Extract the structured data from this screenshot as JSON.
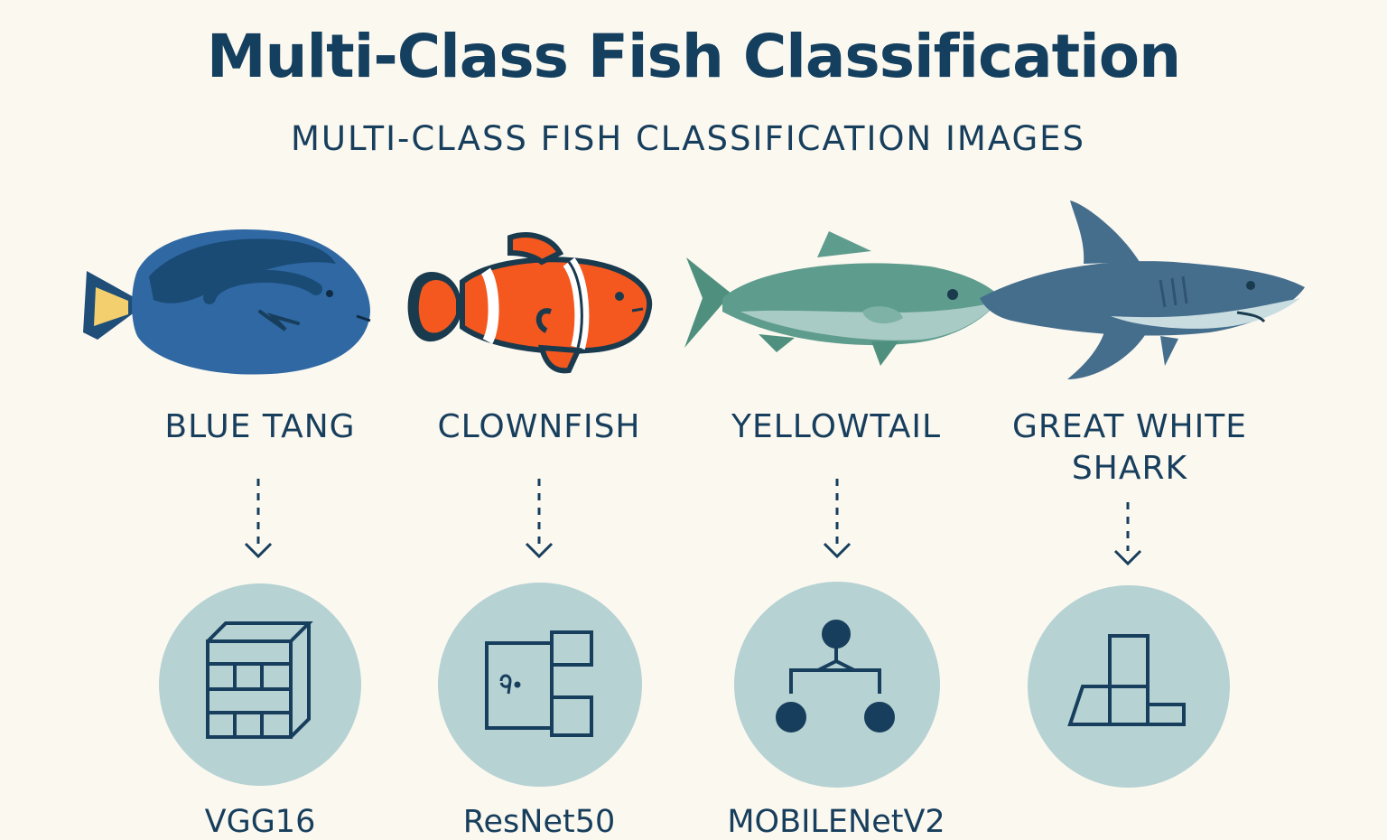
{
  "title": "Multi-Class Fish Classification",
  "subtitle": "MULTI-CLASS FISH CLASSIFICATION IMAGES",
  "colors": {
    "background": "#fbf8f0",
    "text": "#173e5c",
    "circle": "#b6d2d3",
    "blue_tang": "#2f68a3",
    "clownfish": "#f4581e",
    "yellowtail": "#5e9c8d",
    "shark": "#456e8d"
  },
  "items": [
    {
      "fish": "BLUE TANG",
      "model": "VGG16",
      "fish_icon": "blue-tang-illustration",
      "model_icon": "grid-cube-icon"
    },
    {
      "fish": "CLOWNFISH",
      "model": "ResNet50",
      "fish_icon": "clownfish-illustration",
      "model_icon": "residual-blocks-icon"
    },
    {
      "fish": "YELLOWTAIL",
      "model": "MOBILENetV2",
      "fish_icon": "yellowtail-illustration",
      "model_icon": "branch-tree-icon"
    },
    {
      "fish": "GREAT WHITE SHARK",
      "model": "",
      "fish_icon": "great-white-shark-illustration",
      "model_icon": "stacked-blocks-icon"
    }
  ]
}
